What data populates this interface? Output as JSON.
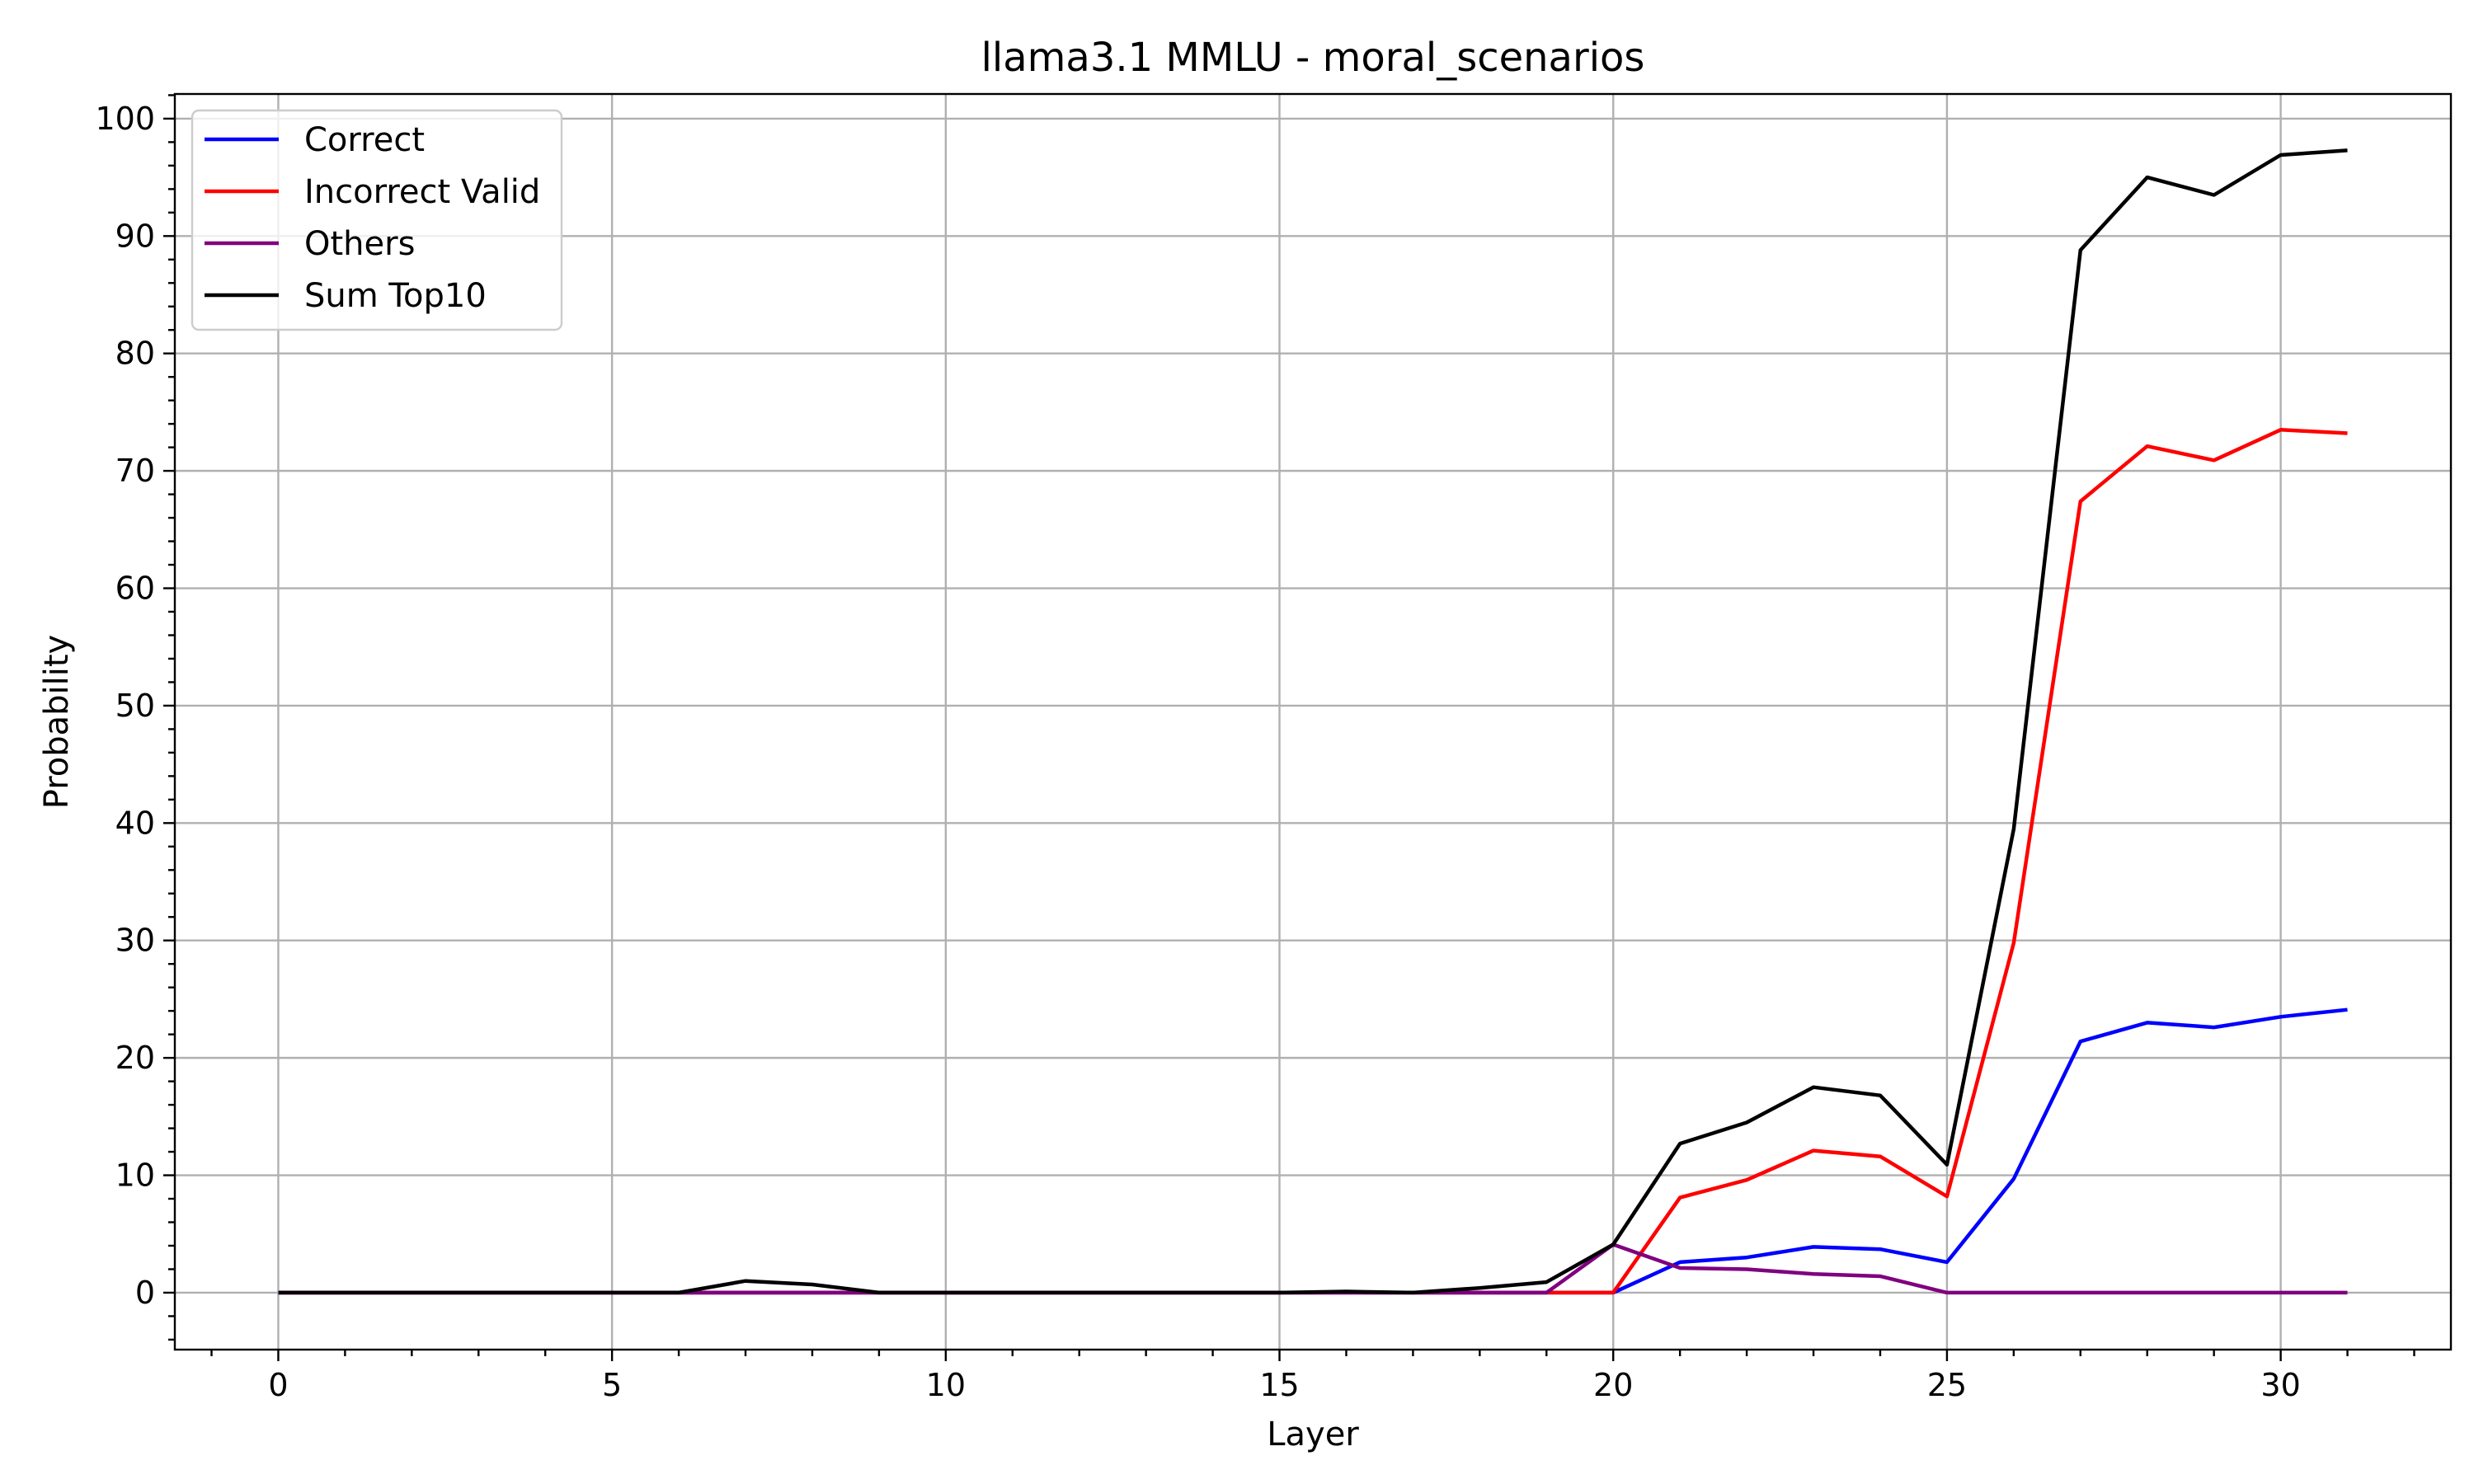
{
  "chart_data": {
    "type": "line",
    "title": "llama3.1 MMLU - moral_scenarios",
    "xlabel": "Layer",
    "ylabel": "Probability",
    "xlim": [
      -1.55,
      32.55
    ],
    "ylim": [
      -4.85,
      102.1
    ],
    "xticks": [
      0,
      5,
      10,
      15,
      20,
      25,
      30
    ],
    "yticks": [
      0,
      10,
      20,
      30,
      40,
      50,
      60,
      70,
      80,
      90,
      100
    ],
    "grid": true,
    "legend_position": "top-left",
    "x": [
      0,
      1,
      2,
      3,
      4,
      5,
      6,
      7,
      8,
      9,
      10,
      11,
      12,
      13,
      14,
      15,
      16,
      17,
      18,
      19,
      20,
      21,
      22,
      23,
      24,
      25,
      26,
      27,
      28,
      29,
      30,
      31
    ],
    "series": [
      {
        "name": "Correct",
        "color": "#0000ff",
        "values": [
          0,
          0,
          0,
          0,
          0,
          0,
          0,
          0,
          0,
          0,
          0,
          0,
          0,
          0,
          0,
          0,
          0,
          0,
          0,
          0,
          0,
          2.6,
          3.0,
          3.9,
          3.7,
          2.6,
          9.7,
          21.4,
          23.0,
          22.6,
          23.5,
          24.1
        ]
      },
      {
        "name": "Incorrect Valid",
        "color": "#ff0000",
        "values": [
          0,
          0,
          0,
          0,
          0,
          0,
          0,
          0,
          0,
          0,
          0,
          0,
          0,
          0,
          0,
          0,
          0,
          0,
          0,
          0,
          0,
          8.1,
          9.6,
          12.1,
          11.6,
          8.2,
          29.8,
          67.4,
          72.1,
          70.9,
          73.5,
          73.2
        ]
      },
      {
        "name": "Others",
        "color": "#800080",
        "values": [
          0,
          0,
          0,
          0,
          0,
          0,
          0,
          0,
          0,
          0,
          0,
          0,
          0,
          0,
          0,
          0,
          0,
          0,
          0,
          0,
          4.1,
          2.1,
          2.0,
          1.6,
          1.4,
          0,
          0,
          0,
          0,
          0,
          0,
          0
        ]
      },
      {
        "name": "Sum Top10",
        "color": "#000000",
        "values": [
          0,
          0,
          0,
          0,
          0,
          0,
          0,
          1.0,
          0.7,
          0,
          0,
          0,
          0,
          0,
          0,
          0,
          0.1,
          0,
          0.4,
          0.9,
          4.1,
          12.7,
          14.5,
          17.5,
          16.8,
          10.9,
          39.5,
          88.8,
          95.0,
          93.5,
          96.9,
          97.3
        ]
      }
    ]
  }
}
